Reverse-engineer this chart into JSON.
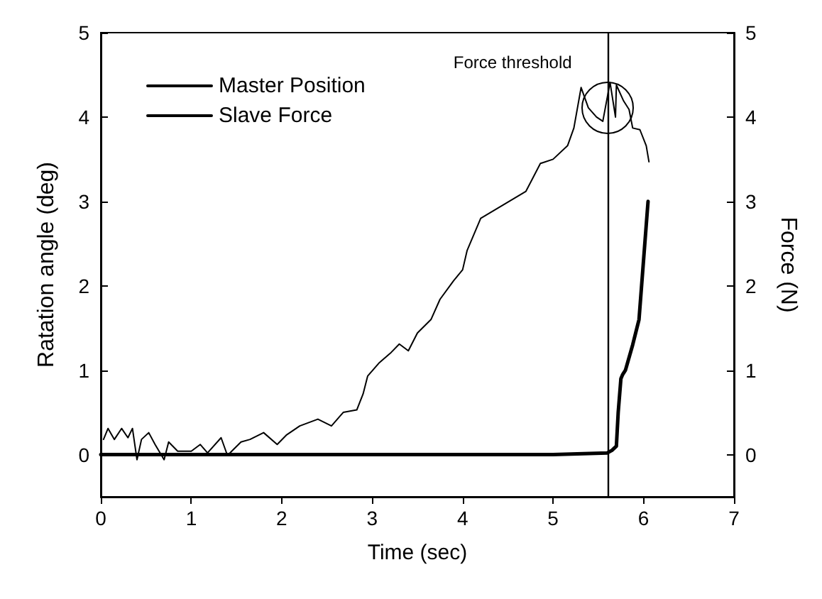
{
  "chart_data": {
    "type": "line",
    "xlabel": "Time (sec)",
    "ylabel": "Ratation angle (deg)",
    "y2label": "Force (N)",
    "xlim": [
      0,
      7
    ],
    "xticks": [
      0,
      1,
      2,
      3,
      4,
      5,
      6,
      7
    ],
    "ylim": [
      -0.5,
      5
    ],
    "yticks": [
      0,
      1,
      2,
      3,
      4,
      5
    ],
    "y2lim": [
      -0.5,
      5
    ],
    "y2ticks": [
      0,
      1,
      2,
      3,
      4,
      5
    ],
    "grid": false,
    "legend": "top left",
    "marker": "none",
    "ref_lines": [
      {
        "axis": "x",
        "value": 5.6,
        "label": "Force threshold",
        "color": "#000000"
      }
    ],
    "series": [
      {
        "name": "Master Position",
        "color": "#000000",
        "x": [
          0,
          1,
          2,
          3,
          4,
          5,
          5.6,
          5.65,
          5.7,
          5.72,
          5.75,
          5.77,
          5.8,
          5.88,
          5.95,
          6.0,
          6.05
        ],
        "values": [
          0,
          0,
          0,
          0,
          0,
          0,
          0.02,
          0.05,
          0.1,
          0.5,
          0.9,
          0.95,
          1.0,
          1.3,
          1.6,
          2.3,
          3.0
        ]
      },
      {
        "name": "Slave Force",
        "color": "#000000",
        "axis": "y2",
        "x": [
          0.03,
          0.08,
          0.15,
          0.23,
          0.3,
          0.35,
          0.4,
          0.45,
          0.53,
          0.6,
          0.7,
          0.75,
          0.85,
          1.0,
          1.1,
          1.18,
          1.33,
          1.4,
          1.55,
          1.65,
          1.8,
          1.95,
          2.05,
          2.2,
          2.4,
          2.55,
          2.68,
          2.83,
          2.9,
          2.95,
          3.08,
          3.2,
          3.3,
          3.4,
          3.5,
          3.65,
          3.75,
          3.9,
          4.0,
          4.05,
          4.2,
          4.45,
          4.7,
          4.86,
          5.0,
          5.16,
          5.23,
          5.31,
          5.39,
          5.48,
          5.55,
          5.63,
          5.69,
          5.7,
          5.78,
          5.84,
          5.88,
          5.96,
          6.03,
          6.06
        ],
        "values": [
          0.18,
          0.31,
          0.18,
          0.31,
          0.2,
          0.31,
          -0.06,
          0.18,
          0.26,
          0.12,
          -0.06,
          0.15,
          0.04,
          0.04,
          0.12,
          0.02,
          0.2,
          -0.01,
          0.15,
          0.18,
          0.26,
          0.12,
          0.23,
          0.34,
          0.42,
          0.34,
          0.5,
          0.53,
          0.72,
          0.93,
          1.09,
          1.2,
          1.31,
          1.23,
          1.44,
          1.6,
          1.84,
          2.06,
          2.19,
          2.42,
          2.8,
          2.96,
          3.12,
          3.45,
          3.5,
          3.66,
          3.87,
          4.35,
          4.11,
          4.0,
          3.95,
          4.41,
          4.0,
          4.38,
          4.19,
          4.09,
          3.87,
          3.85,
          3.66,
          3.47
        ]
      }
    ]
  }
}
